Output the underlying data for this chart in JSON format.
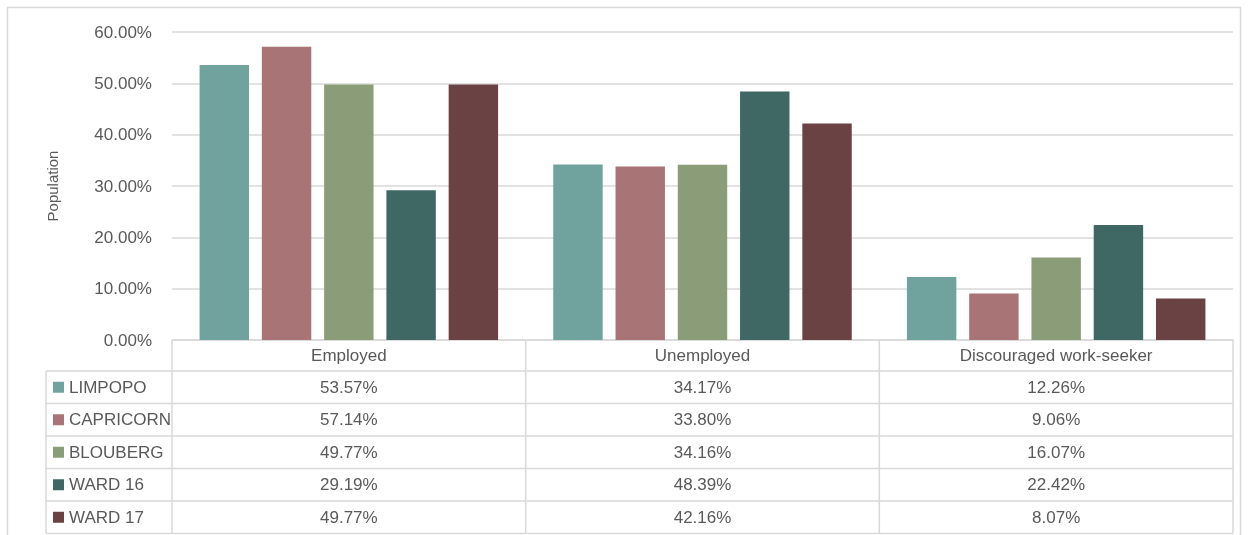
{
  "chart_data": {
    "type": "bar",
    "ylabel": "Population",
    "categories": [
      "Employed",
      "Unemployed",
      "Discouraged work-seeker"
    ],
    "series": [
      {
        "name": "LIMPOPO",
        "color": "#70a39e",
        "values": [
          53.57,
          34.17,
          12.26
        ],
        "value_labels": [
          "53.57%",
          "34.17%",
          "12.26%"
        ]
      },
      {
        "name": "CAPRICORN",
        "color": "#a87476",
        "values": [
          57.14,
          33.8,
          9.06
        ],
        "value_labels": [
          "57.14%",
          "33.80%",
          "9.06%"
        ]
      },
      {
        "name": "BLOUBERG",
        "color": "#8b9c79",
        "values": [
          49.77,
          34.16,
          16.07
        ],
        "value_labels": [
          "49.77%",
          "34.16%",
          "16.07%"
        ]
      },
      {
        "name": "WARD 16",
        "color": "#3f6864",
        "values": [
          29.19,
          48.39,
          22.42
        ],
        "value_labels": [
          "29.19%",
          "48.39%",
          "22.42%"
        ]
      },
      {
        "name": "WARD 17",
        "color": "#6a4244",
        "values": [
          49.77,
          42.16,
          8.07
        ],
        "value_labels": [
          "49.77%",
          "42.16%",
          "8.07%"
        ]
      }
    ],
    "ylim": [
      0,
      60
    ],
    "yticks": [
      {
        "value": 0,
        "label": "0.00%"
      },
      {
        "value": 10,
        "label": "10.00%"
      },
      {
        "value": 20,
        "label": "20.00%"
      },
      {
        "value": 30,
        "label": "30.00%"
      },
      {
        "value": 40,
        "label": "40.00%"
      },
      {
        "value": 50,
        "label": "50.00%"
      },
      {
        "value": 60,
        "label": "60.00%"
      }
    ],
    "grid": "y",
    "legend": "bottom left"
  }
}
